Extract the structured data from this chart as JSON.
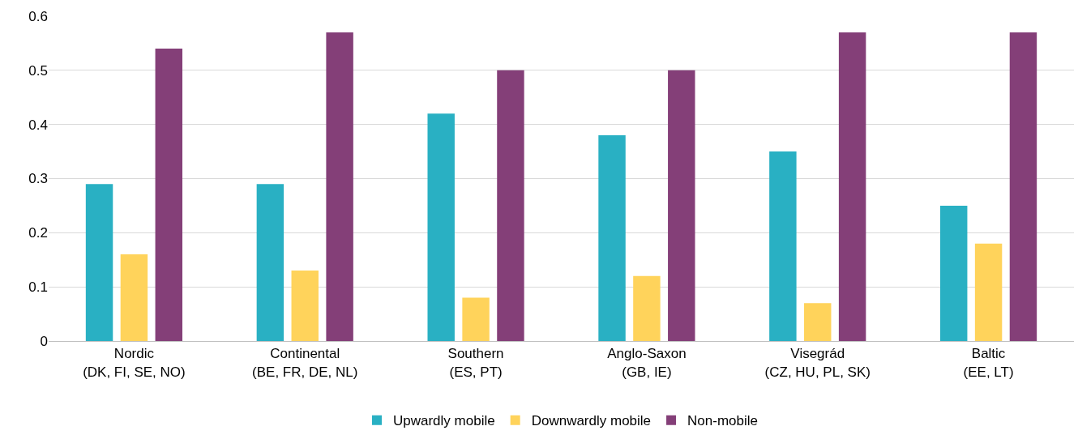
{
  "chart_data": {
    "type": "bar",
    "categories": [
      "Nordic\n(DK, FI, SE, NO)",
      "Continental\n(BE, FR, DE, NL)",
      "Southern\n(ES, PT)",
      "Anglo-Saxon\n(GB, IE)",
      "Visegrád\n(CZ, HU, PL, SK)",
      "Baltic\n(EE, LT)"
    ],
    "series": [
      {
        "name": "Upwardly mobile",
        "color": "#29b0c3",
        "values": [
          0.29,
          0.29,
          0.42,
          0.38,
          0.35,
          0.25
        ]
      },
      {
        "name": "Downwardly mobile",
        "color": "#ffd35b",
        "values": [
          0.16,
          0.13,
          0.08,
          0.12,
          0.07,
          0.18
        ]
      },
      {
        "name": "Non-mobile",
        "color": "#843f78",
        "values": [
          0.54,
          0.57,
          0.5,
          0.5,
          0.57,
          0.57
        ]
      }
    ],
    "ylim": [
      0,
      0.6
    ],
    "yticks": [
      0,
      0.1,
      0.2,
      0.3,
      0.4,
      0.5,
      0.6
    ],
    "grid": "y",
    "legend": "bottom"
  }
}
